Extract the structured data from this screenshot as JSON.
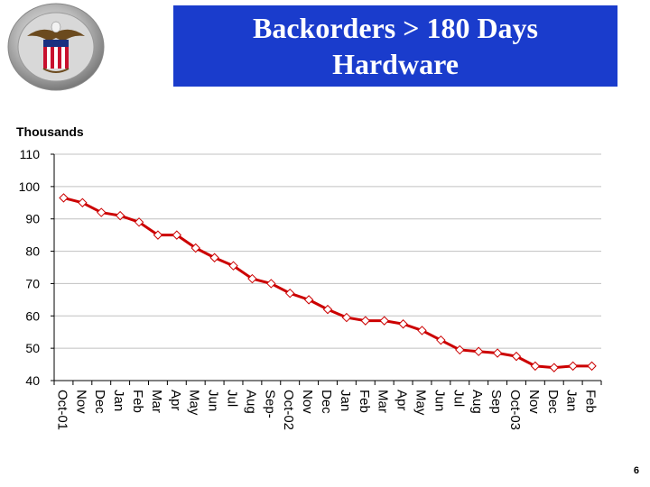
{
  "header": {
    "title_line1": "Backorders > 180 Days",
    "title_line2": "Hardware"
  },
  "footer": {
    "page_number": "6"
  },
  "colors": {
    "title_bg": "#1a3ccc",
    "series_line": "#cc0000",
    "marker_fill": "#ffffff",
    "grid": "#c0c0c0"
  },
  "chart_data": {
    "type": "line",
    "title": "",
    "xlabel": "",
    "ylabel": "Thousands",
    "ylim": [
      40,
      110
    ],
    "yticks": [
      40,
      50,
      60,
      70,
      80,
      90,
      100,
      110
    ],
    "grid": true,
    "categories": [
      "Oct-01",
      "Nov",
      "Dec",
      "Jan",
      "Feb",
      "Mar",
      "Apr",
      "May",
      "Jun",
      "Jul",
      "Aug",
      "Sep-",
      "Oct-02",
      "Nov",
      "Dec",
      "Jan",
      "Feb",
      "Mar",
      "Apr",
      "May",
      "Jun",
      "Jul",
      "Aug",
      "Sep",
      "Oct-03",
      "Nov",
      "Dec",
      "Jan",
      "Feb"
    ],
    "series": [
      {
        "values": [
          96.5,
          95,
          92,
          91,
          89,
          85,
          85,
          81,
          78,
          75.5,
          71.5,
          70,
          67,
          65,
          62,
          59.5,
          58.5,
          58.5,
          57.5,
          55.5,
          52.5,
          49.5,
          49,
          48.5,
          47.5,
          44.5,
          44,
          44.5,
          44.5
        ]
      }
    ]
  }
}
